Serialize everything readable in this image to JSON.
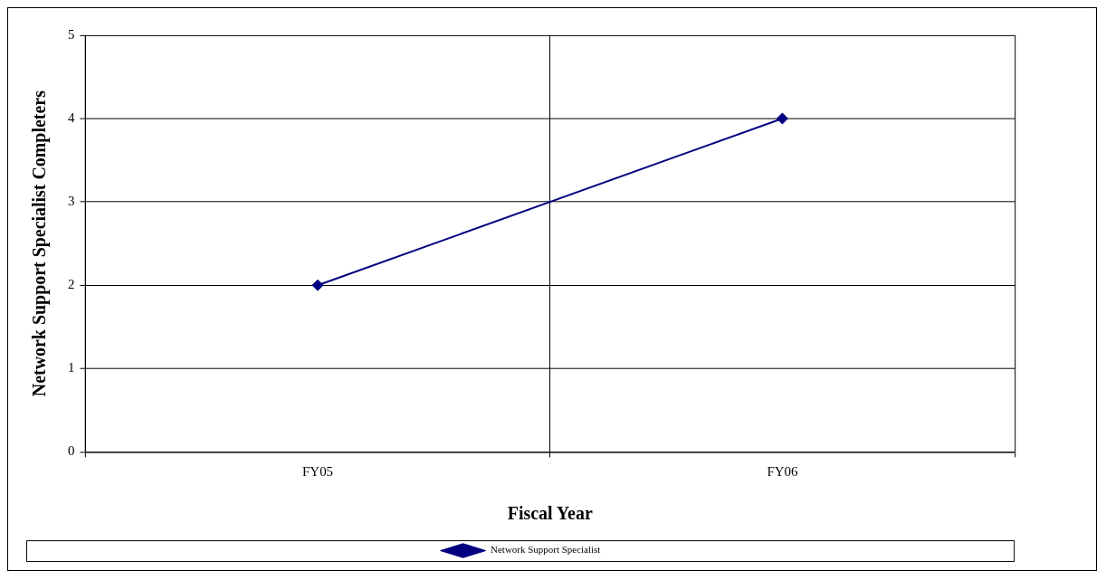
{
  "chart_data": {
    "type": "line",
    "xlabel": "Fiscal Year",
    "ylabel": "Network Support Specialist Completers",
    "categories": [
      "FY05",
      "FY06"
    ],
    "series": [
      {
        "name": "Network Support Specialist",
        "color": "#000080",
        "values": [
          2,
          4
        ]
      }
    ],
    "ylim": [
      0,
      5
    ],
    "yticks": [
      0,
      1,
      2,
      3,
      4,
      5
    ],
    "grid": true,
    "legend": "bottom",
    "marker": "diamond",
    "line_style": "solid"
  }
}
